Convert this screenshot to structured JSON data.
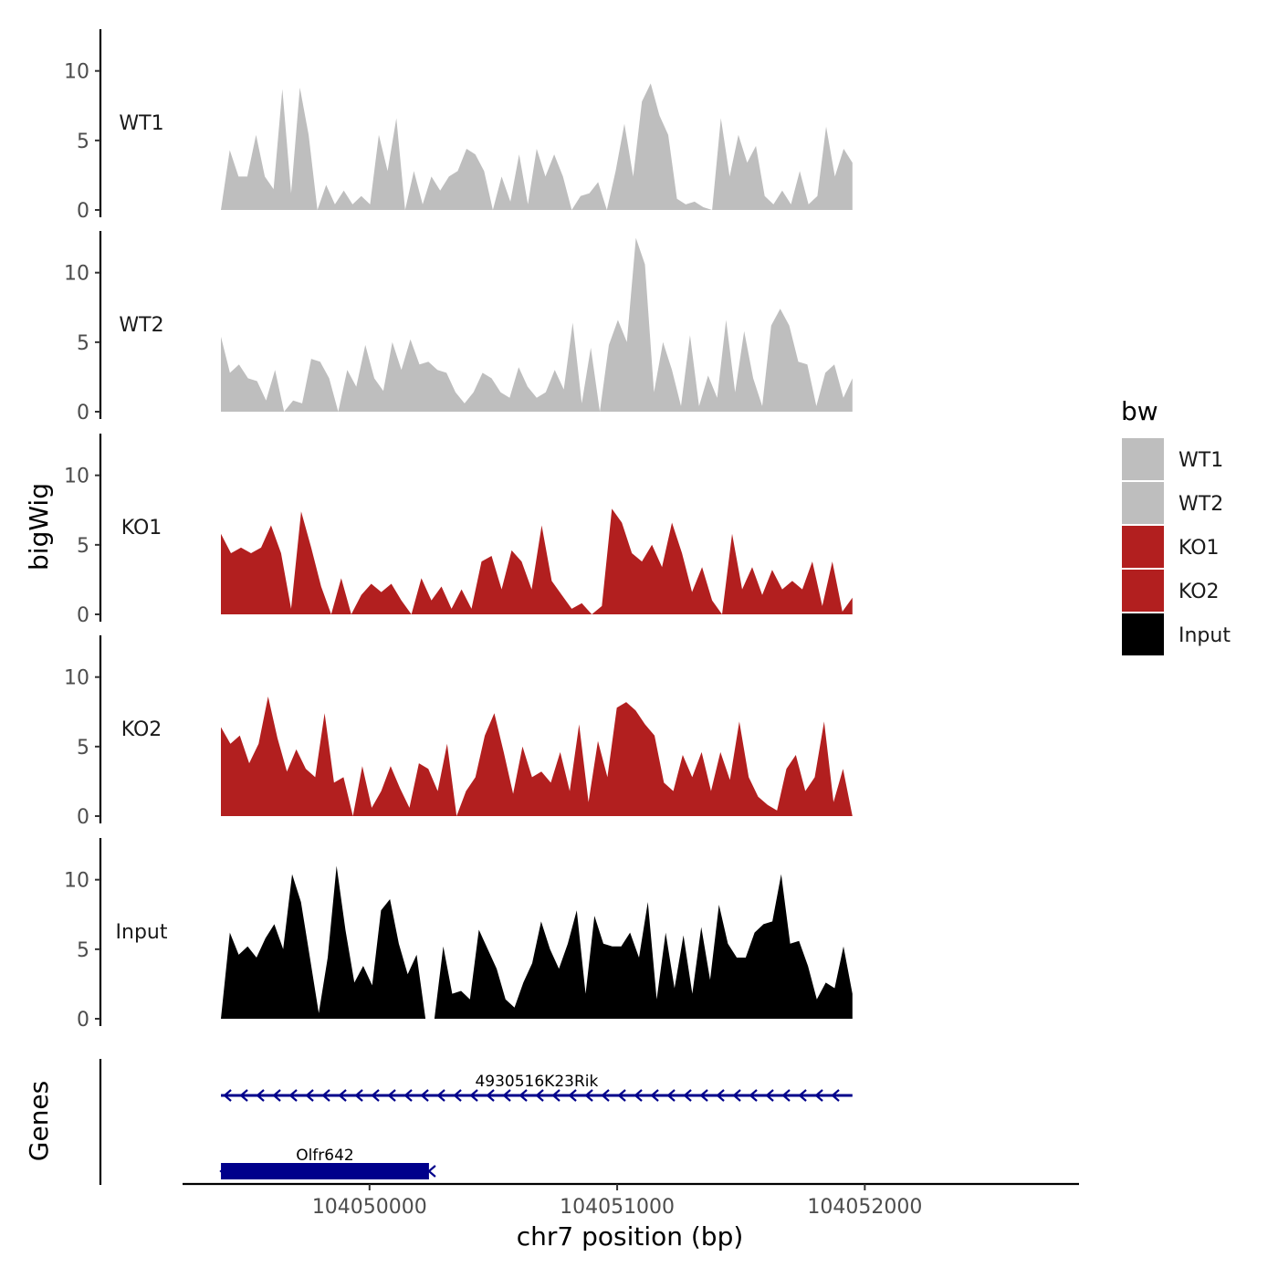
{
  "chart_data": {
    "type": "area",
    "ylabel": "bigWig",
    "xlabel": "chr7 position (bp)",
    "xlim": [
      104049245,
      104052865
    ],
    "ylim": [
      0,
      13
    ],
    "y_ticks": [
      0,
      5,
      10
    ],
    "y_tick_labels": [
      "0",
      "5",
      "10"
    ],
    "x_ticks": [
      104050000,
      104051000,
      104052000
    ],
    "x_tick_labels": [
      "104050000",
      "104051000",
      "104052000"
    ],
    "x_start": 104049400,
    "x_end": 104051950,
    "legend": {
      "title": "bw",
      "position": "right",
      "entries": [
        {
          "label": "WT1",
          "color": "#bebebe"
        },
        {
          "label": "WT2",
          "color": "#bebebe"
        },
        {
          "label": "KO1",
          "color": "#b21f1f"
        },
        {
          "label": "KO2",
          "color": "#b21f1f"
        },
        {
          "label": "Input",
          "color": "#000000"
        }
      ]
    },
    "series": [
      {
        "name": "WT1",
        "label": "WT1",
        "color": "#bebebe",
        "values": [
          0,
          4.3,
          2.4,
          2.4,
          5.4,
          2.4,
          1.5,
          8.7,
          1.2,
          8.8,
          5.4,
          0,
          1.8,
          0.4,
          1.4,
          0.4,
          1.0,
          0.4,
          5.4,
          2.8,
          6.6,
          0,
          2.8,
          0.4,
          2.4,
          1.4,
          2.4,
          2.8,
          4.4,
          4.0,
          2.8,
          0,
          2.4,
          0.6,
          4.0,
          0.4,
          4.4,
          2.4,
          4.0,
          2.4,
          0,
          1.0,
          1.2,
          2.0,
          0,
          2.8,
          6.2,
          2.4,
          7.8,
          9.1,
          6.8,
          5.4,
          0.8,
          0.4,
          0.6,
          0.2,
          0,
          6.6,
          2.4,
          5.4,
          3.4,
          4.6,
          1.0,
          0.4,
          1.4,
          0.4,
          2.8,
          0.4,
          1.0,
          6.0,
          2.4,
          4.4,
          3.4
        ]
      },
      {
        "name": "WT2",
        "label": "WT2",
        "color": "#bebebe",
        "values": [
          5.4,
          2.8,
          3.4,
          2.4,
          2.2,
          0.8,
          3.0,
          0,
          0.8,
          0.6,
          3.8,
          3.6,
          2.4,
          0,
          3.0,
          1.8,
          4.8,
          2.4,
          1.5,
          5.0,
          3.0,
          5.2,
          3.4,
          3.6,
          3.0,
          2.8,
          1.4,
          0.6,
          1.4,
          2.8,
          2.4,
          1.4,
          1.0,
          3.2,
          1.8,
          1.0,
          1.4,
          3.0,
          1.6,
          6.4,
          0.6,
          4.6,
          0,
          4.8,
          6.6,
          5.0,
          12.5,
          10.6,
          1.4,
          5.0,
          3.0,
          0.4,
          5.5,
          0.4,
          2.6,
          1.0,
          6.6,
          1.4,
          5.8,
          2.4,
          0.4,
          6.2,
          7.4,
          6.2,
          3.6,
          3.4,
          0.4,
          2.8,
          3.4,
          1.0,
          2.4
        ]
      },
      {
        "name": "KO1",
        "label": "KO1",
        "color": "#b21f1f",
        "values": [
          5.8,
          4.4,
          4.8,
          4.4,
          4.8,
          6.4,
          4.4,
          0.4,
          7.4,
          4.8,
          2.0,
          0,
          2.6,
          0,
          1.4,
          2.2,
          1.6,
          2.2,
          1.0,
          0,
          2.6,
          1.0,
          2.0,
          0.4,
          1.8,
          0.4,
          3.8,
          4.2,
          1.8,
          4.6,
          3.8,
          1.8,
          6.4,
          2.4,
          1.4,
          0.4,
          0.8,
          0,
          0.6,
          7.6,
          6.6,
          4.4,
          3.8,
          5.0,
          3.4,
          6.6,
          4.4,
          1.6,
          3.4,
          1.0,
          0,
          5.8,
          1.8,
          3.4,
          1.4,
          3.2,
          1.8,
          2.4,
          1.8,
          3.8,
          0.6,
          3.8,
          0.2,
          1.2
        ]
      },
      {
        "name": "KO2",
        "label": "KO2",
        "color": "#b21f1f",
        "values": [
          6.4,
          5.2,
          5.8,
          3.8,
          5.2,
          8.6,
          5.6,
          3.2,
          4.8,
          3.4,
          2.8,
          7.4,
          2.4,
          2.8,
          0,
          3.6,
          0.6,
          1.8,
          3.6,
          2.0,
          0.6,
          3.8,
          3.4,
          1.8,
          5.2,
          0,
          1.8,
          2.8,
          5.8,
          7.4,
          4.6,
          1.6,
          5.0,
          2.8,
          3.2,
          2.4,
          4.6,
          1.8,
          6.6,
          1.0,
          5.4,
          2.8,
          7.8,
          8.2,
          7.6,
          6.6,
          5.8,
          2.4,
          1.8,
          4.4,
          2.8,
          4.6,
          1.8,
          4.6,
          2.6,
          6.8,
          2.8,
          1.4,
          0.8,
          0.4,
          3.4,
          4.4,
          1.8,
          2.8,
          6.8,
          1.0,
          3.4,
          0
        ]
      },
      {
        "name": "Input",
        "label": "Input",
        "color": "#000000",
        "values": [
          0,
          6.2,
          4.6,
          5.2,
          4.4,
          5.8,
          6.8,
          5.0,
          10.4,
          8.4,
          4.4,
          0.4,
          4.4,
          11.0,
          6.4,
          2.6,
          3.8,
          2.4,
          7.8,
          8.6,
          5.4,
          3.2,
          4.6,
          0,
          0,
          5.2,
          1.8,
          2.0,
          1.4,
          6.4,
          5.0,
          3.6,
          1.4,
          0.8,
          2.6,
          4.0,
          7.0,
          5.0,
          3.6,
          5.4,
          7.8,
          1.8,
          7.4,
          5.4,
          5.2,
          5.2,
          6.2,
          4.4,
          8.4,
          1.4,
          6.2,
          2.2,
          6.0,
          1.8,
          6.6,
          2.8,
          8.2,
          5.4,
          4.4,
          4.4,
          6.2,
          6.8,
          7.0,
          10.4,
          5.4,
          5.6,
          3.8,
          1.4,
          2.6,
          2.2,
          5.2,
          1.8
        ]
      }
    ],
    "genes_track": {
      "label": "Genes",
      "genes": [
        {
          "name": "4930516K23Rik",
          "start": 104049400,
          "end": 104051950,
          "strand": "-",
          "row": 1,
          "color": "#00008b"
        },
        {
          "name": "Olfr642",
          "start": 104049400,
          "end": 104050240,
          "strand": "-",
          "row": 2,
          "color": "#00008b"
        }
      ]
    }
  }
}
